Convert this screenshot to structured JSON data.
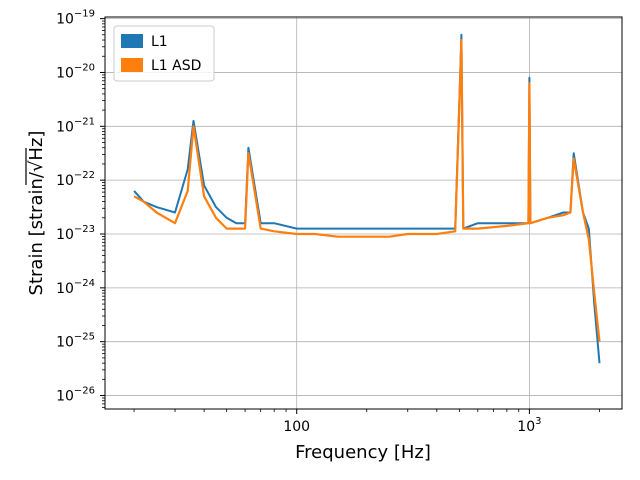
{
  "chart_data": {
    "type": "line",
    "scale": {
      "x": "log",
      "y": "log"
    },
    "title": "",
    "xlabel": "Frequency [Hz]",
    "ylabel": "Strain [strain/√Hz]",
    "ylabel_prefix": "Strain [strain/",
    "ylabel_radicand": "Hz",
    "ylabel_suffix": "]",
    "xlim": [
      15,
      2500
    ],
    "ylim_exponents": [
      -26.25,
      -18.97
    ],
    "x_ticks": [
      {
        "value": 100,
        "label": "100"
      },
      {
        "value": 1000,
        "label_base": "10",
        "label_exp": "3"
      }
    ],
    "y_ticks": [
      {
        "exp": -26,
        "base": "10",
        "label_exp": "−26"
      },
      {
        "exp": -25,
        "base": "10",
        "label_exp": "−25"
      },
      {
        "exp": -24,
        "base": "10",
        "label_exp": "−24"
      },
      {
        "exp": -23,
        "base": "10",
        "label_exp": "−23"
      },
      {
        "exp": -22,
        "base": "10",
        "label_exp": "−22"
      },
      {
        "exp": -21,
        "base": "10",
        "label_exp": "−21"
      },
      {
        "exp": -20,
        "base": "10",
        "label_exp": "−20"
      },
      {
        "exp": -19,
        "base": "10",
        "label_exp": "−19"
      }
    ],
    "grid": true,
    "legend_position": "top-left",
    "series": [
      {
        "name": "L1",
        "color": "#1f77b4",
        "description": "noisy amplitude spectral density",
        "x": [
          20,
          22,
          25,
          30,
          34,
          36,
          40,
          45,
          50,
          55,
          60,
          62,
          70,
          80,
          100,
          120,
          150,
          180,
          200,
          250,
          300,
          330,
          400,
          480,
          500,
          510,
          520,
          600,
          800,
          990,
          1000,
          1010,
          1200,
          1400,
          1500,
          1550,
          1700,
          1800,
          1900,
          2000
        ],
        "y_exp": [
          -22.2,
          -22.4,
          -22.5,
          -22.6,
          -21.8,
          -20.9,
          -22.1,
          -22.5,
          -22.7,
          -22.8,
          -22.8,
          -21.4,
          -22.8,
          -22.8,
          -22.9,
          -22.9,
          -22.9,
          -22.9,
          -22.9,
          -22.9,
          -22.9,
          -22.9,
          -22.9,
          -22.9,
          -20.5,
          -19.3,
          -22.9,
          -22.8,
          -22.8,
          -22.8,
          -20.1,
          -22.8,
          -22.7,
          -22.6,
          -22.6,
          -21.5,
          -22.6,
          -22.9,
          -24.3,
          -25.4
        ]
      },
      {
        "name": "L1 ASD",
        "color": "#ff7f0e",
        "description": "smoothed amplitude spectral density",
        "x": [
          20,
          22,
          25,
          30,
          34,
          36,
          40,
          45,
          50,
          55,
          60,
          62,
          70,
          80,
          100,
          120,
          150,
          180,
          200,
          250,
          300,
          330,
          400,
          480,
          500,
          510,
          520,
          600,
          800,
          990,
          1000,
          1010,
          1200,
          1400,
          1500,
          1550,
          1700,
          1800,
          1900,
          2000
        ],
        "y_exp": [
          -22.3,
          -22.4,
          -22.6,
          -22.8,
          -22.2,
          -21.0,
          -22.3,
          -22.7,
          -22.9,
          -22.9,
          -22.9,
          -21.5,
          -22.9,
          -22.95,
          -23.0,
          -23.0,
          -23.05,
          -23.05,
          -23.05,
          -23.05,
          -23.0,
          -23.0,
          -23.0,
          -22.95,
          -20.6,
          -19.4,
          -22.9,
          -22.9,
          -22.85,
          -22.8,
          -20.2,
          -22.8,
          -22.7,
          -22.65,
          -22.6,
          -21.6,
          -22.6,
          -23.1,
          -24.1,
          -25.0
        ]
      }
    ]
  }
}
